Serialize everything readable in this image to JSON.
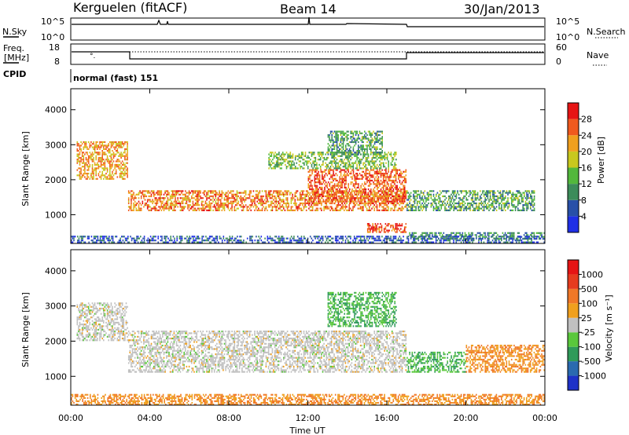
{
  "header": {
    "station": "Kerguelen (fitACF)",
    "beam": "Beam 14",
    "date": "30/Jan/2013"
  },
  "noise_panel": {
    "left_label": "N.Sky",
    "right_label": "N.Search",
    "left_ticks": [
      "10^5",
      "10^0"
    ],
    "right_ticks": [
      "10^5",
      "10^0"
    ]
  },
  "freq_panel": {
    "left_label_line1": "Freq.",
    "left_label_line2": "[MHz]",
    "right_label": "Nave",
    "left_ticks": [
      "18",
      "8"
    ],
    "right_ticks": [
      "60",
      "0"
    ]
  },
  "cpid": {
    "label": "CPID",
    "value": "normal (fast) 151"
  },
  "power_panel": {
    "ylabel": "Slant Range [km]",
    "yticks": [
      "1000",
      "2000",
      "3000",
      "4000"
    ],
    "colorbar_label": "Power [dB]",
    "colorbar_ticks": [
      "4",
      "8",
      "12",
      "16",
      "20",
      "24",
      "28"
    ],
    "colorbar_colors": [
      "#1f2fe6",
      "#2850a8",
      "#3c8c5a",
      "#52b83c",
      "#c8c81e",
      "#f0a01e",
      "#f05a1e",
      "#e61414"
    ]
  },
  "velocity_panel": {
    "ylabel": "Slant Range [km]",
    "yticks": [
      "1000",
      "2000",
      "3000",
      "4000"
    ],
    "colorbar_label": "Velocity [m s⁻¹]",
    "colorbar_ticks": [
      "1000",
      "500",
      "100",
      "25",
      "-25",
      "-100",
      "-500",
      "-1000"
    ],
    "colorbar_colors": [
      "#1e32c8",
      "#2a6ab0",
      "#2f9a5a",
      "#5ac83c",
      "#c0c0c0",
      "#f0a01e",
      "#f07828",
      "#e63c1e",
      "#e61414"
    ]
  },
  "xaxis": {
    "label": "Time UT",
    "ticks": [
      "00:00",
      "04:00",
      "08:00",
      "12:00",
      "16:00",
      "20:00",
      "00:00"
    ]
  },
  "chart_data": [
    {
      "type": "line",
      "title": "",
      "xlabel": "",
      "ylabel": "N.Sky",
      "x": [
        "00:00",
        "04:00",
        "08:00",
        "12:00",
        "16:00",
        "17:00",
        "20:00",
        "24:00"
      ],
      "series": [
        {
          "name": "N.Sky",
          "values": [
            30000,
            30000,
            30000,
            30000,
            30000,
            20000,
            20000,
            20000
          ]
        }
      ]
    },
    {
      "type": "line",
      "title": "",
      "xlabel": "",
      "ylabel": "Freq. [MHz]",
      "ylim": [
        8,
        18
      ],
      "x": [
        "00:00",
        "03:00",
        "03:00",
        "17:00",
        "17:00",
        "24:00"
      ],
      "series": [
        {
          "name": "Freq.",
          "values": [
            13,
            13,
            10,
            10,
            13,
            13
          ]
        }
      ]
    },
    {
      "type": "heatmap",
      "title": "",
      "xlabel": "Time UT",
      "ylabel": "Slant Range [km]",
      "ylim": [
        180,
        4600
      ],
      "x_range_hours": [
        0,
        24
      ],
      "colorbar": "Power [dB]",
      "bands": [
        {
          "t": [
            0.3,
            2.9
          ],
          "range_km": [
            2000,
            3100
          ],
          "power_db": 22
        },
        {
          "t": [
            2.9,
            17.0
          ],
          "range_km": [
            1100,
            1700
          ],
          "power_db": 24
        },
        {
          "t": [
            12.0,
            17.0
          ],
          "range_km": [
            1300,
            2300
          ],
          "power_db": 26
        },
        {
          "t": [
            10.0,
            16.5
          ],
          "range_km": [
            2300,
            2800
          ],
          "power_db": 14
        },
        {
          "t": [
            13.0,
            15.8
          ],
          "range_km": [
            2700,
            3400
          ],
          "power_db": 12
        },
        {
          "t": [
            15.0,
            17.0
          ],
          "range_km": [
            480,
            760
          ],
          "power_db": 28
        },
        {
          "t": [
            17.0,
            23.5
          ],
          "range_km": [
            1100,
            1700
          ],
          "power_db": 12
        },
        {
          "t": [
            17.0,
            24.0
          ],
          "range_km": [
            280,
            500
          ],
          "power_db": 10
        },
        {
          "t": [
            0.0,
            24.0
          ],
          "range_km": [
            180,
            400
          ],
          "power_db": 6
        }
      ]
    },
    {
      "type": "heatmap",
      "title": "",
      "xlabel": "Time UT",
      "ylabel": "Slant Range [km]",
      "ylim": [
        180,
        4600
      ],
      "x_range_hours": [
        0,
        24
      ],
      "colorbar": "Velocity [m s⁻¹]",
      "bands": [
        {
          "t": [
            0.3,
            2.9
          ],
          "range_km": [
            2000,
            3100
          ],
          "velocity": 0
        },
        {
          "t": [
            2.9,
            17.0
          ],
          "range_km": [
            1100,
            2300
          ],
          "velocity": 0
        },
        {
          "t": [
            13.0,
            16.5
          ],
          "range_km": [
            2400,
            3400
          ],
          "velocity": 100
        },
        {
          "t": [
            17.0,
            20.0
          ],
          "range_km": [
            1100,
            1700
          ],
          "velocity": 100
        },
        {
          "t": [
            20.0,
            24.0
          ],
          "range_km": [
            1100,
            1900
          ],
          "velocity": -100
        },
        {
          "t": [
            0.0,
            24.0
          ],
          "range_km": [
            180,
            500
          ],
          "velocity": -100
        }
      ]
    }
  ]
}
